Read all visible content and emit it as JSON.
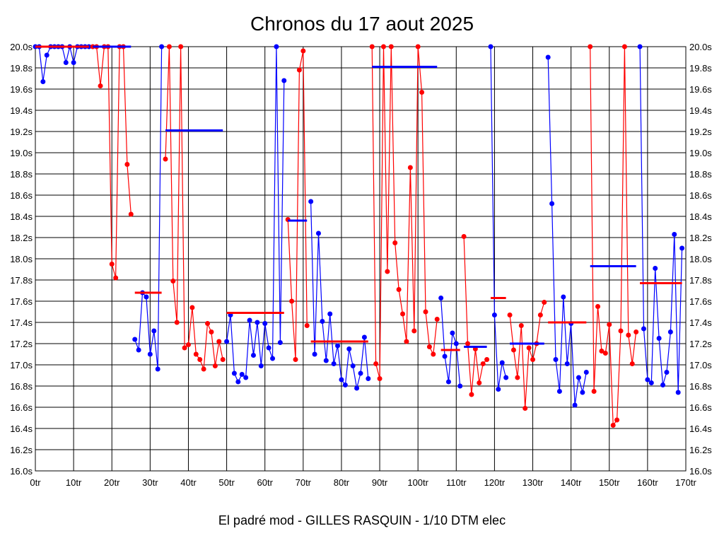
{
  "chart_data": {
    "type": "line",
    "title": "Chronos du 17 aout 2025",
    "xlabel": "El padré mod - GILLES RASQUIN - 1/10 DTM elec",
    "ylabel": "",
    "xlim": [
      0,
      170
    ],
    "ylim": [
      16.0,
      20.0
    ],
    "grid": true,
    "x_ticks": [
      "0tr",
      "10tr",
      "20tr",
      "30tr",
      "40tr",
      "50tr",
      "60tr",
      "70tr",
      "80tr",
      "90tr",
      "100tr",
      "110tr",
      "120tr",
      "130tr",
      "140tr",
      "150tr",
      "160tr",
      "170tr"
    ],
    "y_ticks": [
      "16.0s",
      "16.2s",
      "16.4s",
      "16.6s",
      "16.8s",
      "17.0s",
      "17.2s",
      "17.4s",
      "17.6s",
      "17.8s",
      "18.0s",
      "18.2s",
      "18.4s",
      "18.6s",
      "18.8s",
      "19.0s",
      "19.2s",
      "19.4s",
      "19.6s",
      "19.8s",
      "20.0s"
    ],
    "colors": {
      "blue": "#0000ff",
      "red": "#ff0000"
    },
    "stints": [
      {
        "color": "blue",
        "start_lap": 0,
        "average": 20.0,
        "values": [
          20,
          20,
          19.67,
          19.92,
          20,
          20,
          20,
          20,
          19.85,
          20,
          19.85,
          20,
          20,
          20,
          20
        ]
      },
      {
        "color": "red",
        "start_lap": 15,
        "average": 20.0,
        "values": [
          20,
          20,
          19.63,
          20,
          20,
          17.95,
          17.82,
          20,
          20,
          18.89,
          18.42
        ]
      },
      {
        "color": "blue",
        "start_lap": 26,
        "average": 17.68,
        "values": [
          17.24,
          17.14,
          17.68,
          17.64,
          17.1,
          17.32,
          16.96,
          20
        ]
      },
      {
        "color": "red",
        "start_lap": 34,
        "average": 19.21,
        "values": [
          18.94,
          20,
          17.79,
          17.4,
          20,
          17.16,
          17.19,
          17.54,
          17.1,
          17.05,
          16.96,
          17.39,
          17.31,
          16.99,
          17.22,
          17.05
        ]
      },
      {
        "color": "blue",
        "start_lap": 50,
        "average": 17.49,
        "values": [
          17.22,
          17.47,
          16.92,
          16.84,
          16.91,
          16.88,
          17.42,
          17.09,
          17.4,
          16.99,
          17.39,
          17.16,
          17.06,
          20,
          17.21,
          19.68
        ]
      },
      {
        "color": "red",
        "start_lap": 66,
        "average": 18.36,
        "values": [
          18.37,
          17.6,
          17.05,
          19.78,
          19.96,
          17.37
        ]
      },
      {
        "color": "blue",
        "start_lap": 72,
        "average": 17.22,
        "values": [
          18.54,
          17.1,
          18.24,
          17.41,
          17.04,
          17.48,
          17.01,
          17.18,
          16.86,
          16.81,
          17.15,
          16.99,
          16.78,
          16.92,
          17.26,
          16.87
        ]
      },
      {
        "color": "red",
        "start_lap": 88,
        "average": 19.81,
        "values": [
          20,
          17.01,
          16.87,
          20,
          17.88,
          20,
          18.15,
          17.71,
          17.48,
          17.22,
          18.86,
          17.32,
          20,
          19.57,
          17.5,
          17.17,
          17.1,
          17.43
        ]
      },
      {
        "color": "blue",
        "start_lap": 106,
        "average": 17.14,
        "values": [
          17.63,
          17.08,
          16.84,
          17.3,
          17.2,
          16.8
        ]
      },
      {
        "color": "red",
        "start_lap": 112,
        "average": 17.17,
        "values": [
          18.21,
          17.2,
          16.72,
          17.15,
          16.83,
          17.01,
          17.05
        ]
      },
      {
        "color": "blue",
        "start_lap": 119,
        "average": 17.63,
        "values": [
          20,
          17.47,
          16.77,
          17.02,
          16.88
        ]
      },
      {
        "color": "red",
        "start_lap": 124,
        "average": 17.2,
        "values": [
          17.47,
          17.14,
          16.88,
          17.37,
          16.59,
          17.16,
          17.05,
          17.2,
          17.47,
          17.59
        ]
      },
      {
        "color": "blue",
        "start_lap": 134,
        "average": 17.4,
        "values": [
          19.9,
          18.52,
          17.05,
          16.75,
          17.64,
          17.01,
          17.39,
          16.62,
          16.88,
          16.74,
          16.93
        ]
      },
      {
        "color": "red",
        "start_lap": 145,
        "average": 17.93,
        "values": [
          20,
          16.75,
          17.55,
          17.13,
          17.11,
          17.38,
          16.43,
          16.48,
          17.32,
          20,
          17.28,
          17.01,
          17.31
        ]
      },
      {
        "color": "blue",
        "start_lap": 158,
        "average": 17.77,
        "values": [
          20,
          17.34,
          16.86,
          16.83,
          17.91,
          17.25,
          16.81,
          16.93,
          17.31,
          18.23,
          16.74,
          18.1
        ]
      }
    ]
  }
}
